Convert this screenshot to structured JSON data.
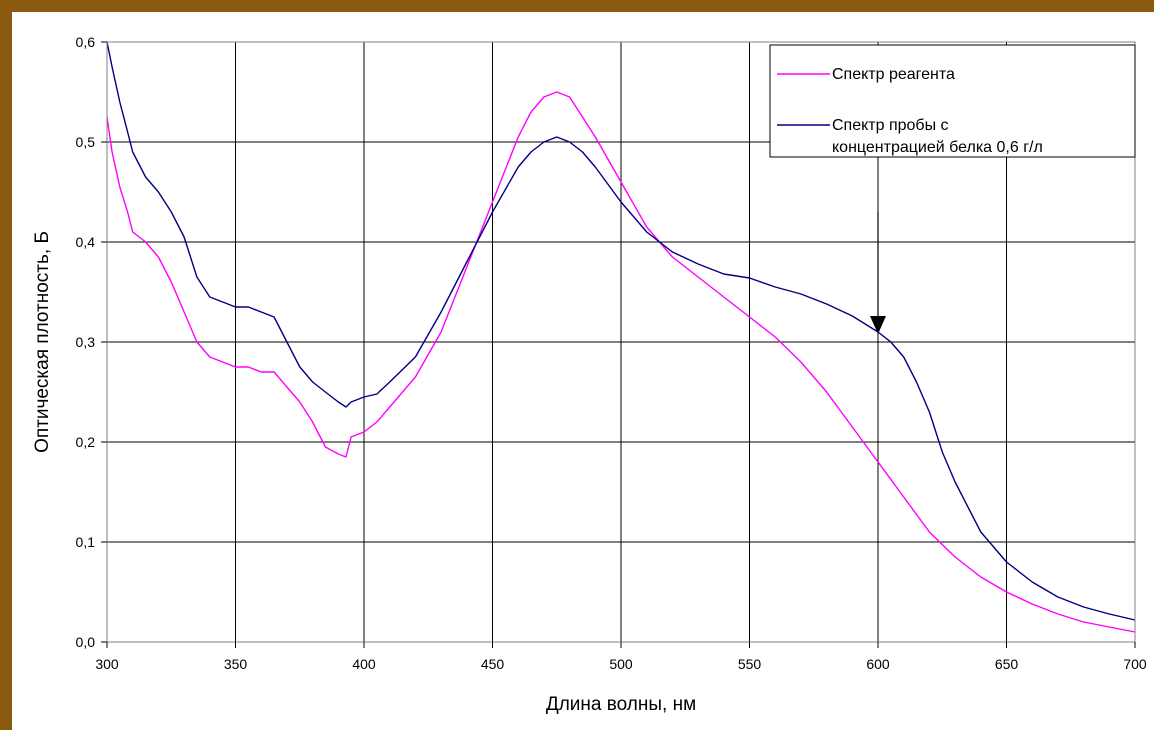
{
  "chart_data": {
    "type": "line",
    "title": "",
    "xlabel": "Длина волны, нм",
    "ylabel": "Оптическая плотность, Б",
    "xlim": [
      300,
      700
    ],
    "ylim": [
      0.0,
      0.6
    ],
    "x_ticks": [
      "300",
      "350",
      "400",
      "450",
      "500",
      "550",
      "600",
      "650",
      "700"
    ],
    "y_ticks": [
      "0,0",
      "0,1",
      "0,2",
      "0,3",
      "0,4",
      "0,5",
      "0,6"
    ],
    "grid": true,
    "legend_position": "top-right",
    "legend": [
      "Спектр реагента",
      "Спектр пробы с концентрацией белка 0,6 г/л"
    ],
    "annotation": {
      "type": "arrow",
      "x": 600,
      "y": 0.31
    },
    "series": [
      {
        "name": "Спектр реагента",
        "color": "#FF00FF",
        "x": [
          300,
          302,
          305,
          308,
          310,
          315,
          320,
          325,
          330,
          335,
          340,
          345,
          350,
          355,
          360,
          365,
          370,
          375,
          380,
          385,
          390,
          393,
          395,
          400,
          405,
          410,
          420,
          430,
          440,
          450,
          460,
          465,
          470,
          475,
          480,
          485,
          490,
          500,
          510,
          520,
          530,
          540,
          550,
          560,
          570,
          580,
          590,
          600,
          610,
          620,
          630,
          640,
          650,
          660,
          670,
          680,
          690,
          700
        ],
        "y": [
          0.525,
          0.49,
          0.455,
          0.43,
          0.41,
          0.4,
          0.385,
          0.36,
          0.33,
          0.3,
          0.285,
          0.28,
          0.275,
          0.275,
          0.27,
          0.27,
          0.255,
          0.24,
          0.22,
          0.195,
          0.188,
          0.185,
          0.205,
          0.21,
          0.22,
          0.235,
          0.265,
          0.31,
          0.375,
          0.44,
          0.505,
          0.53,
          0.545,
          0.55,
          0.545,
          0.525,
          0.505,
          0.46,
          0.415,
          0.385,
          0.365,
          0.345,
          0.325,
          0.305,
          0.28,
          0.25,
          0.215,
          0.18,
          0.145,
          0.11,
          0.085,
          0.065,
          0.05,
          0.038,
          0.028,
          0.02,
          0.015,
          0.01
        ]
      },
      {
        "name": "Спектр пробы с концентрацией белка 0,6 г/л",
        "color": "#000080",
        "x": [
          300,
          302,
          305,
          308,
          310,
          315,
          320,
          325,
          330,
          335,
          340,
          345,
          350,
          355,
          360,
          365,
          370,
          375,
          380,
          385,
          390,
          393,
          395,
          400,
          405,
          410,
          420,
          430,
          440,
          450,
          460,
          465,
          470,
          475,
          480,
          485,
          490,
          500,
          510,
          520,
          530,
          540,
          550,
          560,
          570,
          580,
          590,
          600,
          605,
          610,
          615,
          620,
          625,
          630,
          640,
          650,
          660,
          670,
          680,
          690,
          700
        ],
        "y": [
          0.6,
          0.575,
          0.54,
          0.51,
          0.49,
          0.465,
          0.45,
          0.43,
          0.405,
          0.365,
          0.345,
          0.34,
          0.335,
          0.335,
          0.33,
          0.325,
          0.3,
          0.275,
          0.26,
          0.25,
          0.24,
          0.235,
          0.24,
          0.245,
          0.248,
          0.26,
          0.285,
          0.33,
          0.38,
          0.43,
          0.475,
          0.49,
          0.5,
          0.505,
          0.5,
          0.49,
          0.475,
          0.44,
          0.41,
          0.39,
          0.378,
          0.368,
          0.364,
          0.355,
          0.348,
          0.338,
          0.326,
          0.31,
          0.3,
          0.285,
          0.26,
          0.23,
          0.19,
          0.16,
          0.11,
          0.08,
          0.06,
          0.045,
          0.035,
          0.028,
          0.022
        ]
      }
    ]
  }
}
